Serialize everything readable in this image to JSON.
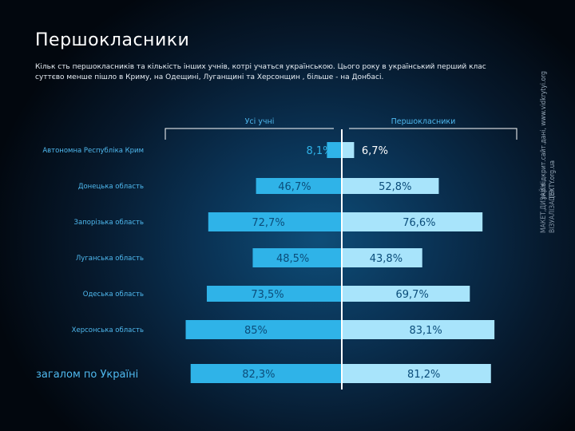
{
  "title": "Першокласники",
  "subtitle_line1": "Кільк сть першокласників та кількість інших учнів, котрі учаться українською. Цього року в український перший клас",
  "subtitle_line2": "суттєво менше пішло в Криму, на Одещині, Луганщині та Херсонщин , більше - на Донбасі.",
  "credits": {
    "label1": "МАКЕТ,ДИЗАЙН:",
    "value1": "укр.відкрит.сайт.дані, www.vidkrytyi.org",
    "label2": "ВІЗУАЛІЗАЦІЯ:",
    "value2": "TEXTY.org.ua"
  },
  "colors": {
    "left_bar": "#2fb3e8",
    "right_bar": "#a8e4fb",
    "left_text": "#0b4d7a",
    "right_text": "#0b4d7a",
    "region_label": "#4fb9ef",
    "axis_line": "#ffffff",
    "first_left_text": "#2fb3e8",
    "first_right_text": "#ffffff"
  },
  "chart_data": {
    "type": "bar",
    "title": "Першокласники",
    "orientation": "horizontal-diverging",
    "series": [
      {
        "name": "Усі учні",
        "values": [
          8.1,
          46.7,
          72.7,
          48.5,
          73.5,
          85,
          82.3
        ],
        "labels": [
          "8,1%",
          "46,7%",
          "72,7%",
          "48,5%",
          "73,5%",
          "85%",
          "82,3%"
        ]
      },
      {
        "name": "Першокласники",
        "values": [
          6.7,
          52.8,
          76.6,
          43.8,
          69.7,
          83.1,
          81.2
        ],
        "labels": [
          "6,7%",
          "52,8%",
          "76,6%",
          "43,8%",
          "69,7%",
          "83,1%",
          "81,2%"
        ]
      }
    ],
    "categories": [
      "Автономна Республіка Крим",
      "Донецька область",
      "Запорізька область",
      "Луганська область",
      "Одеська область",
      "Херсонська область",
      "загалом по Україні"
    ],
    "xlim": [
      0,
      100
    ]
  }
}
